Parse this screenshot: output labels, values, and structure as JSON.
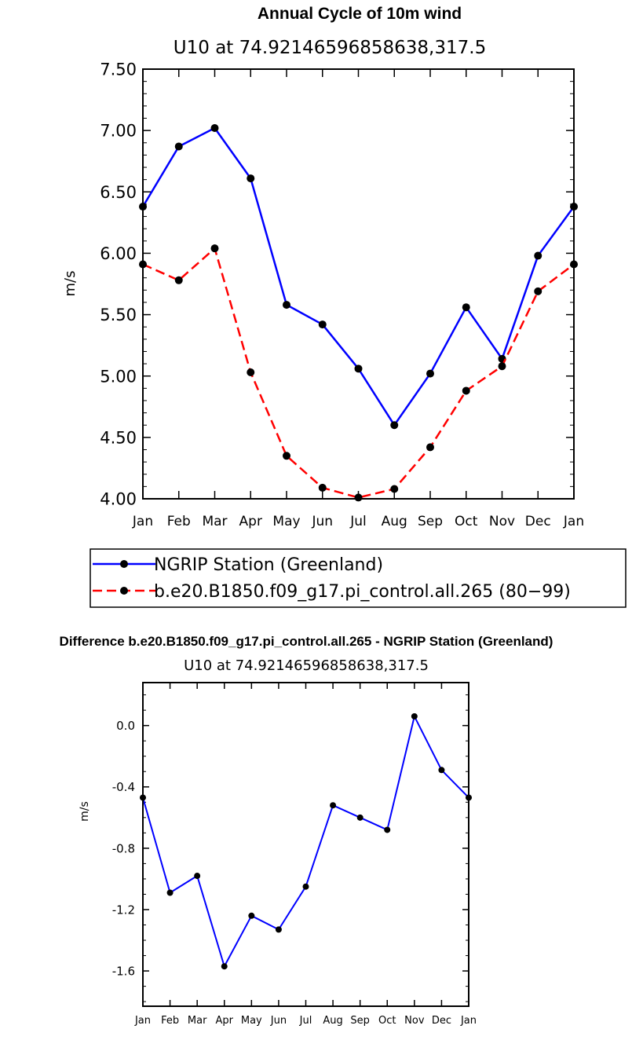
{
  "chart_data": [
    {
      "type": "line",
      "title": "Annual Cycle of 10m wind",
      "subtitle": "U10 at 74.92146596858638,317.5",
      "ylabel": "m/s",
      "xlabel": "",
      "ylim": [
        4.0,
        7.5
      ],
      "yticks": [
        "4.00",
        "4.50",
        "5.00",
        "5.50",
        "6.00",
        "6.50",
        "7.00",
        "7.50"
      ],
      "categories": [
        "Jan",
        "Feb",
        "Mar",
        "Apr",
        "May",
        "Jun",
        "Jul",
        "Aug",
        "Sep",
        "Oct",
        "Nov",
        "Dec",
        "Jan"
      ],
      "series": [
        {
          "name": "NGRIP Station (Greenland)",
          "color": "#0000ff",
          "dash": "solid",
          "values": [
            6.38,
            6.87,
            7.02,
            6.61,
            5.58,
            5.42,
            5.06,
            4.6,
            5.02,
            5.56,
            5.14,
            5.98,
            6.38
          ]
        },
        {
          "name": "b.e20.B1850.f09_g17.pi_control.all.265 (80−99)",
          "color": "#ff0000",
          "dash": "dashed",
          "values": [
            5.91,
            5.78,
            6.04,
            5.03,
            4.35,
            4.09,
            4.01,
            4.08,
            4.42,
            4.88,
            5.08,
            5.69,
            5.91
          ]
        }
      ],
      "legend_position": "below",
      "grid": false
    },
    {
      "type": "line",
      "title": "Difference b.e20.B1850.f09_g17.pi_control.all.265 - NGRIP Station (Greenland)",
      "subtitle": "U10 at 74.92146596858638,317.5",
      "ylabel": "m/s",
      "xlabel": "",
      "ylim": [
        -1.83,
        0.28
      ],
      "yticks": [
        "-1.6",
        "-1.2",
        "-0.8",
        "-0.4",
        "0.0"
      ],
      "ytick_values": [
        -1.6,
        -1.2,
        -0.8,
        -0.4,
        0.0
      ],
      "categories": [
        "Jan",
        "Feb",
        "Mar",
        "Apr",
        "May",
        "Jun",
        "Jul",
        "Aug",
        "Sep",
        "Oct",
        "Nov",
        "Dec",
        "Jan"
      ],
      "series": [
        {
          "color": "#0000ff",
          "dash": "solid",
          "values": [
            -0.47,
            -1.09,
            -0.98,
            -1.57,
            -1.24,
            -1.33,
            -1.05,
            -0.52,
            -0.6,
            -0.68,
            0.06,
            -0.29,
            -0.47
          ]
        }
      ],
      "grid": false
    }
  ]
}
